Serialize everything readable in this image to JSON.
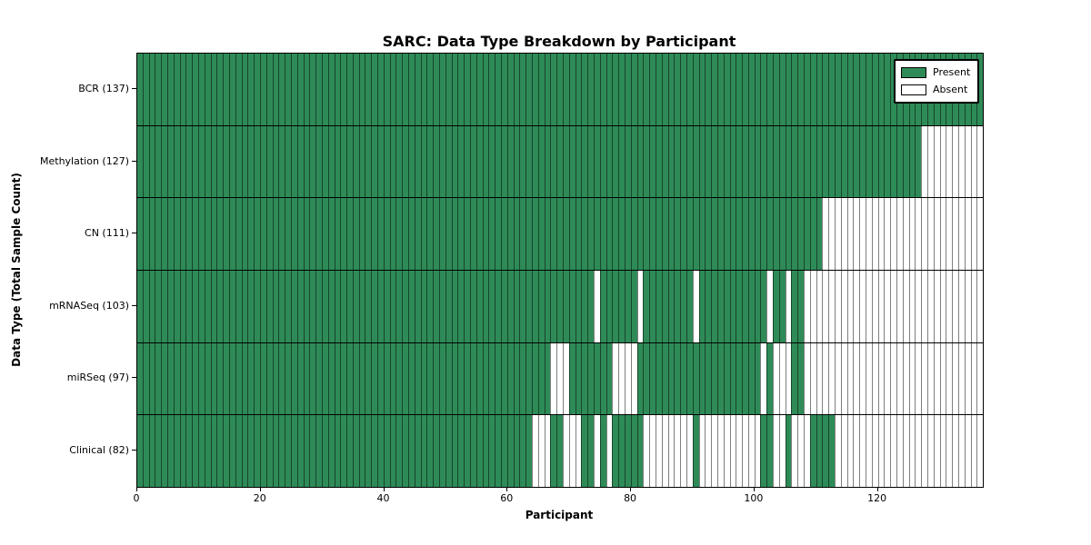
{
  "title": "SARC: Data Type Breakdown by Participant",
  "chart_data": {
    "type": "heatmap",
    "title": "SARC: Data Type Breakdown by Participant",
    "xlabel": "Participant",
    "ylabel": "Data Type (Total Sample Count)",
    "n_participants": 137,
    "x_ticks": [
      0,
      20,
      40,
      60,
      80,
      100,
      120
    ],
    "grid": false,
    "legend_position": "upper right",
    "legend": [
      {
        "label": "Present",
        "color": "#2e8b57"
      },
      {
        "label": "Absent",
        "color": "#ffffff"
      }
    ],
    "colors": {
      "present": "#2e8b57",
      "absent": "#ffffff"
    },
    "rows": [
      {
        "label": "BCR (137)",
        "name": "BCR",
        "present_count": 137,
        "absent_ranges": []
      },
      {
        "label": "Methylation (127)",
        "name": "Methylation",
        "present_count": 127,
        "absent_ranges": [
          [
            127,
            136
          ]
        ]
      },
      {
        "label": "CN (111)",
        "name": "CN",
        "present_count": 111,
        "absent_ranges": [
          [
            111,
            136
          ]
        ]
      },
      {
        "label": "mRNASeq (103)",
        "name": "mRNASeq",
        "present_count": 103,
        "absent_ranges": [
          [
            74,
            74
          ],
          [
            81,
            81
          ],
          [
            90,
            90
          ],
          [
            102,
            102
          ],
          [
            105,
            105
          ],
          [
            108,
            136
          ]
        ]
      },
      {
        "label": "miRSeq (97)",
        "name": "miRSeq",
        "present_count": 97,
        "absent_ranges": [
          [
            67,
            69
          ],
          [
            77,
            80
          ],
          [
            101,
            101
          ],
          [
            103,
            105
          ],
          [
            108,
            136
          ]
        ]
      },
      {
        "label": "Clinical (82)",
        "name": "Clinical",
        "present_count": 82,
        "absent_ranges": [
          [
            64,
            66
          ],
          [
            69,
            71
          ],
          [
            74,
            74
          ],
          [
            76,
            76
          ],
          [
            82,
            89
          ],
          [
            91,
            100
          ],
          [
            103,
            104
          ],
          [
            106,
            108
          ],
          [
            113,
            136
          ]
        ]
      }
    ]
  }
}
